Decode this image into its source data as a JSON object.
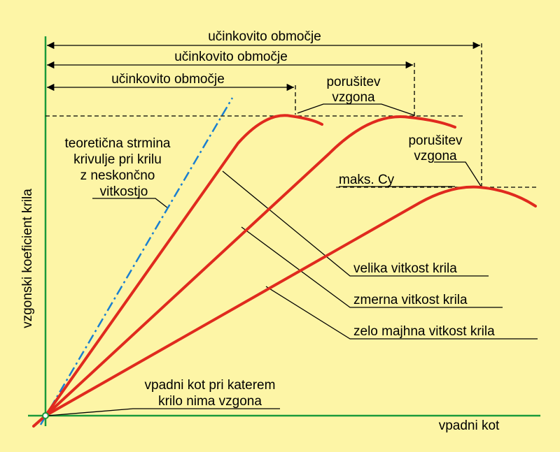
{
  "axes": {
    "y_label": "vzgonski koeficient krila",
    "x_label": "vpadni kot"
  },
  "ranges": [
    "učinkovito območje",
    "učinkovito območje",
    "učinkovito območje"
  ],
  "stall_1": [
    "porušitev",
    "vzgona"
  ],
  "stall_2": [
    "porušitev",
    "vzgona"
  ],
  "max_label": "maks. Cy",
  "theory": [
    "teoretična strmina",
    "krivulje pri krilu",
    "z neskončno",
    "vitkostjo"
  ],
  "curves": [
    "velika vitkost krila",
    "zmerna vitkost krila",
    "zelo majhna vitkost krila"
  ],
  "zero_lift": [
    "vpadni kot pri katerem",
    "krilo nima vzgona"
  ]
}
